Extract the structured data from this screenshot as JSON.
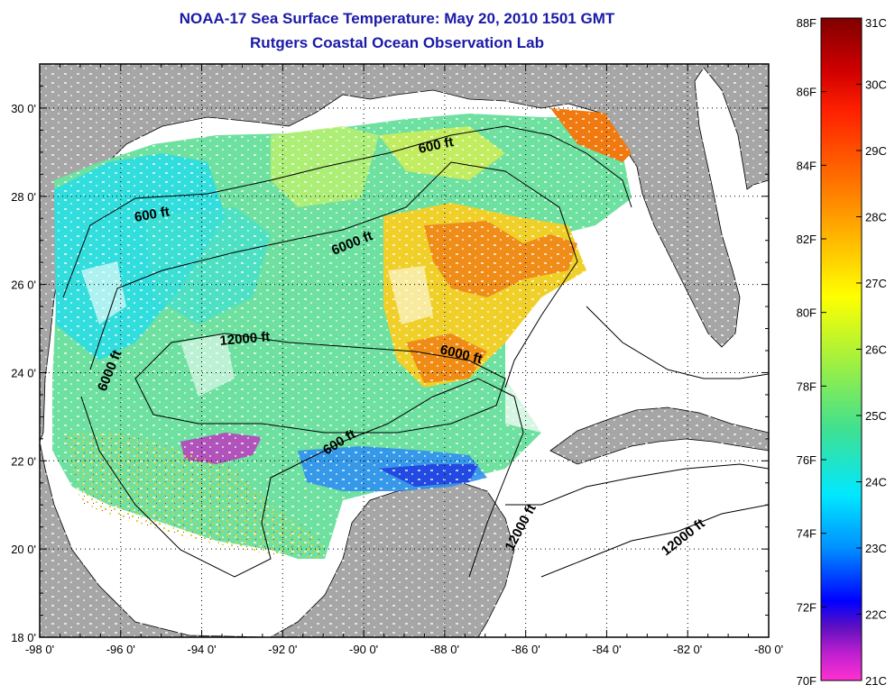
{
  "title": {
    "line1": "NOAA-17 Sea Surface Temperature:  May 20, 2010 1501 GMT",
    "line2": "Rutgers Coastal Ocean Observation Lab"
  },
  "map": {
    "lon_range": [
      -98,
      -80
    ],
    "lat_range": [
      18,
      31
    ],
    "x_ticks": [
      "-98 0'",
      "-96 0'",
      "-94 0'",
      "-92 0'",
      "-90 0'",
      "-88 0'",
      "-86 0'",
      "-84 0'",
      "-82 0'",
      "-80 0'"
    ],
    "y_ticks": [
      "18 0'",
      "20 0'",
      "22 0'",
      "24 0'",
      "26 0'",
      "28 0'",
      "30 0'"
    ],
    "contour_labels": [
      "600 ft",
      "600 ft",
      "6000 ft",
      "6000 ft",
      "12000 ft",
      "6000 ft",
      "600 ft",
      "12000 ft",
      "12000 ft"
    ],
    "colors": {
      "land": "#a6a6a6",
      "no_data": "#ffffff",
      "warm": "#f07a10",
      "mid": "#e8e830",
      "cool": "#6ee0a0",
      "cold": "#20d8e8"
    }
  },
  "colorbar": {
    "fahrenheit": [
      "88F",
      "86F",
      "84F",
      "82F",
      "80F",
      "78F",
      "76F",
      "74F",
      "72F",
      "70F"
    ],
    "celsius": [
      "31C",
      "30C",
      "29C",
      "28C",
      "27C",
      "26C",
      "25C",
      "24C",
      "23C",
      "22C",
      "21C"
    ]
  }
}
